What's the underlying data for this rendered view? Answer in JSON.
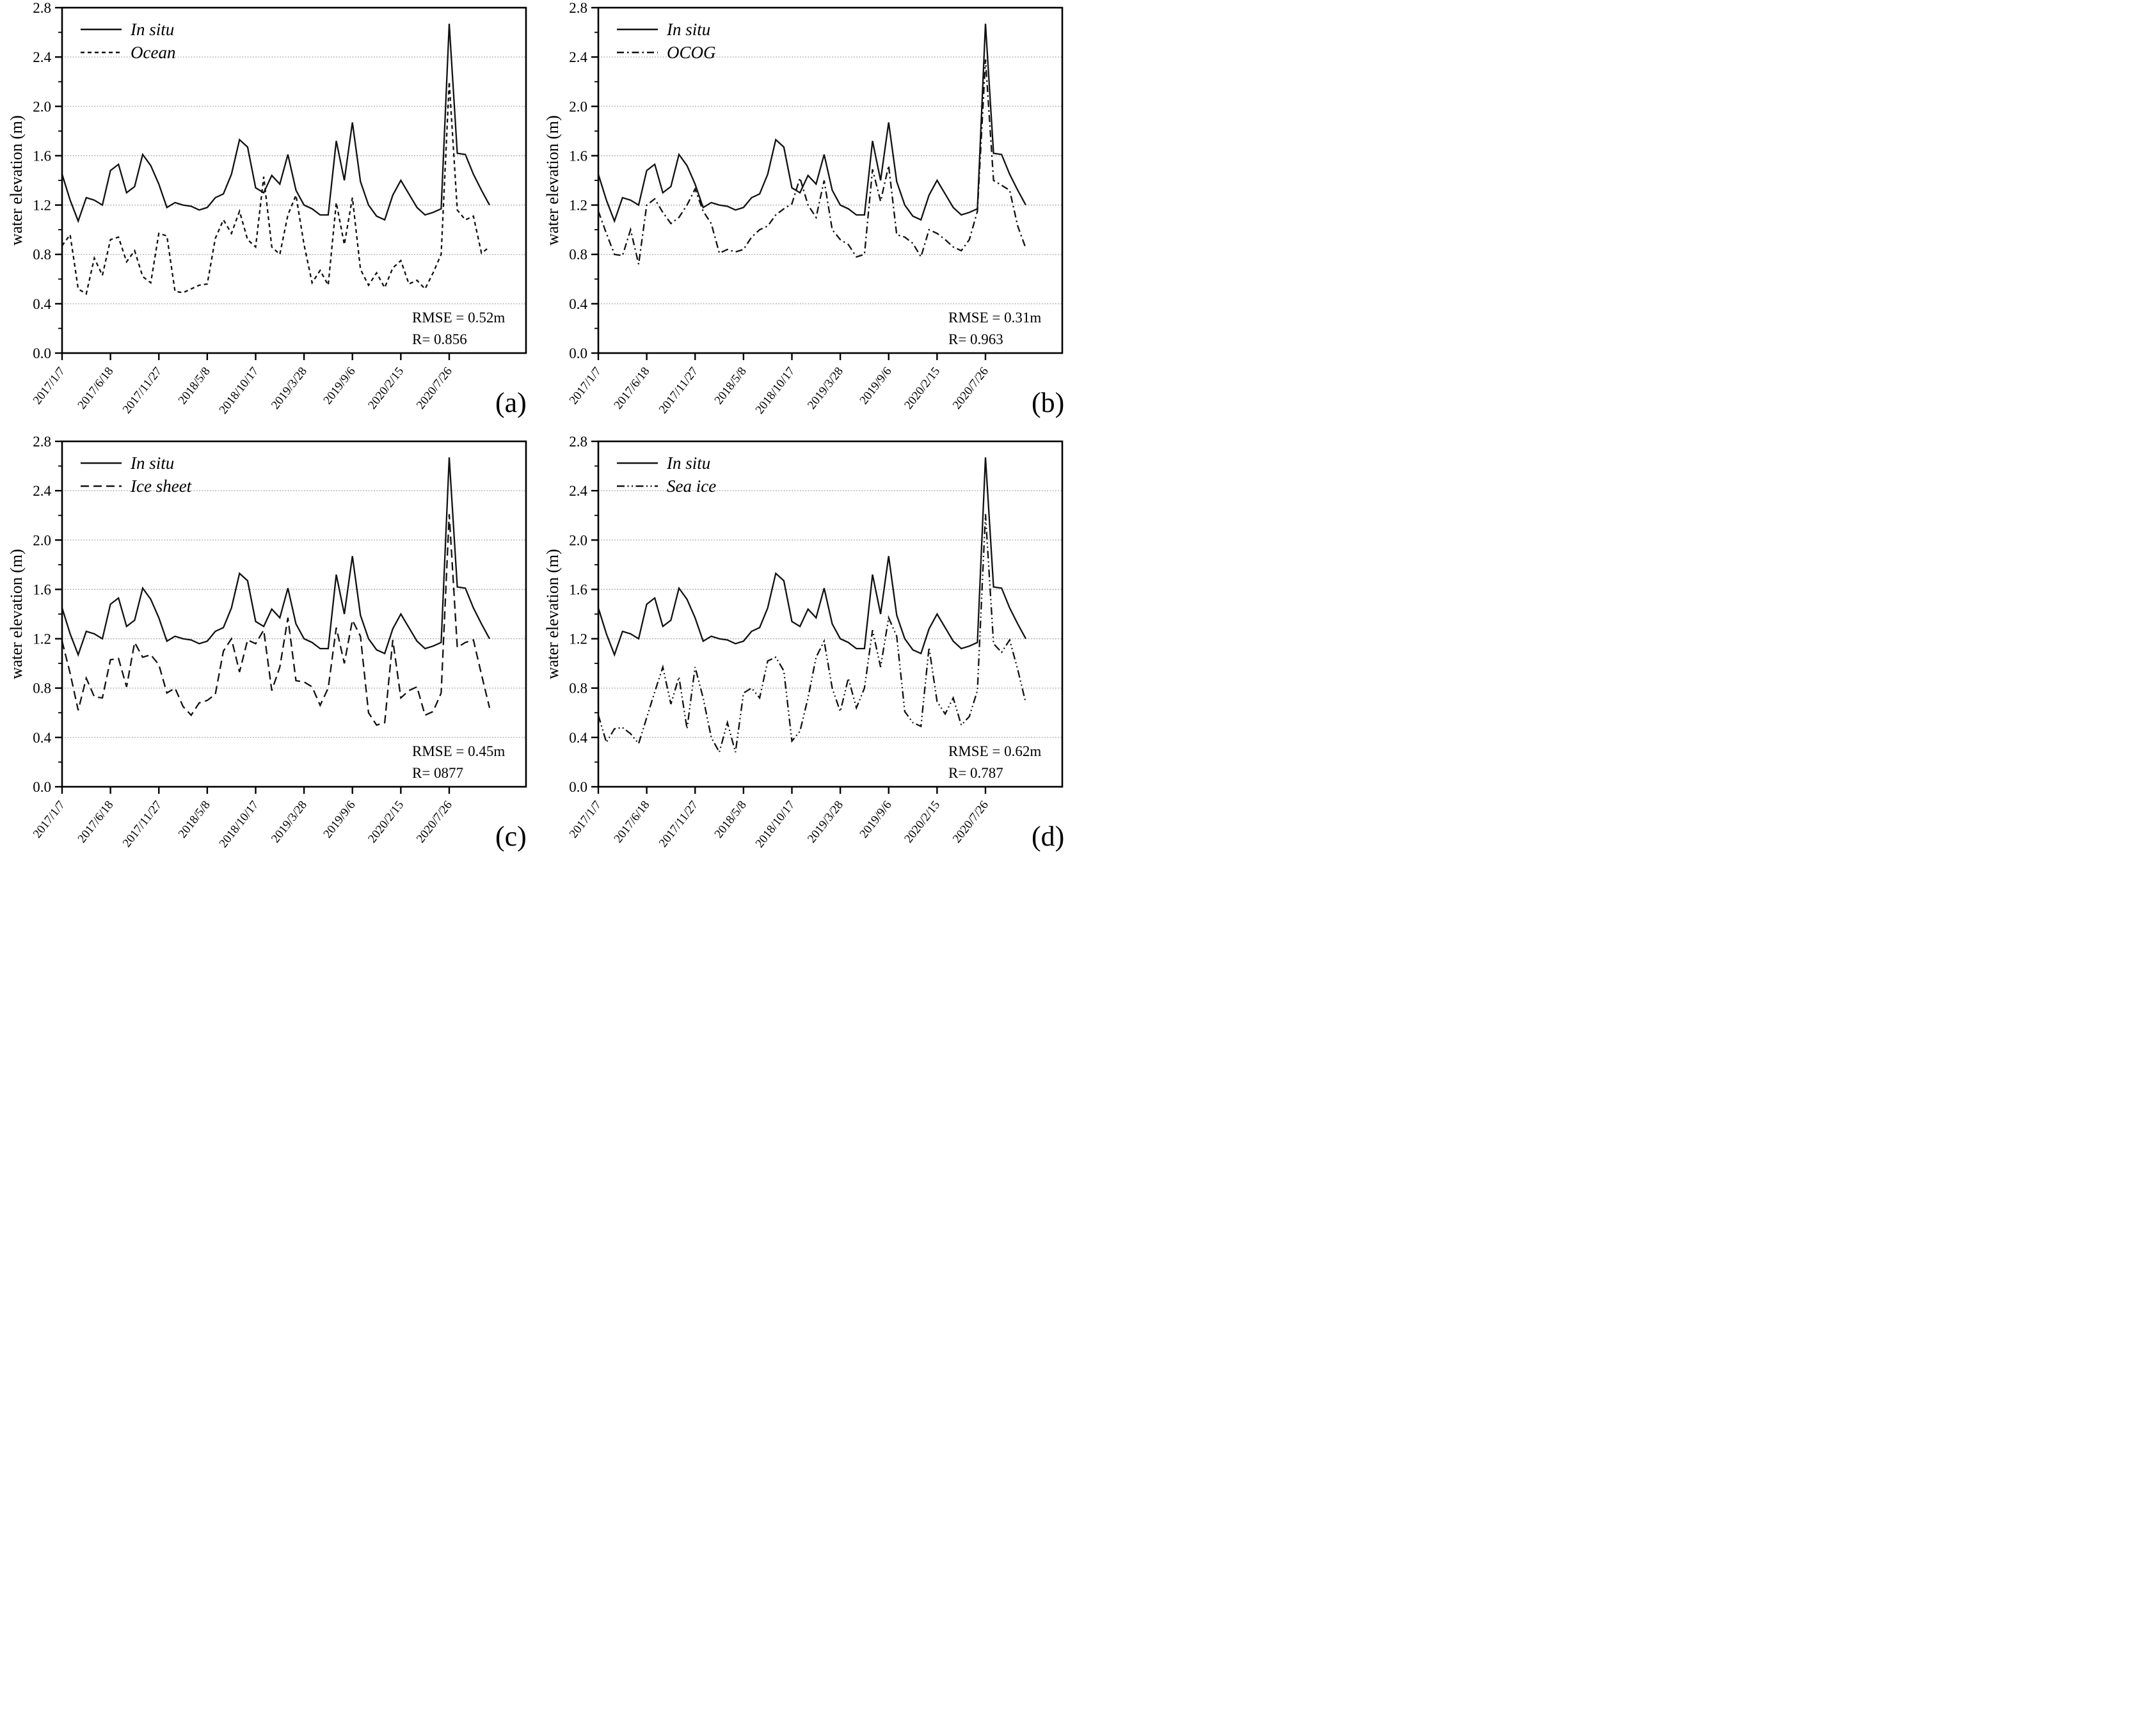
{
  "figure": {
    "ylabel": "water elevation (m)",
    "ylim": [
      0.0,
      2.8
    ],
    "y_tick_step": 0.4,
    "y_tick_labels": [
      "0.0",
      "0.4",
      "0.8",
      "1.2",
      "1.6",
      "2.0",
      "2.4",
      "2.8"
    ],
    "x_tick_labels": [
      "2017/1/7",
      "2017/6/18",
      "2017/11/27",
      "2018/5/8",
      "2018/10/17",
      "2019/3/28",
      "2019/9/6",
      "2020/2/15",
      "2020/7/26"
    ],
    "points_per_tick_interval": 6,
    "grid": "horizontal dotted gridlines",
    "legend_position": "top-left"
  },
  "chart_data": [
    {
      "panel": "a",
      "type": "line",
      "panel_label": "(a)",
      "rmse_label": "RMSE = 0.52m",
      "r_label": "R= 0.856",
      "series": [
        {
          "name": "In situ",
          "style": "solid",
          "values": [
            1.45,
            1.24,
            1.07,
            1.26,
            1.24,
            1.2,
            1.48,
            1.53,
            1.3,
            1.35,
            1.61,
            1.52,
            1.37,
            1.18,
            1.22,
            1.2,
            1.19,
            1.16,
            1.18,
            1.26,
            1.29,
            1.45,
            1.73,
            1.67,
            1.34,
            1.3,
            1.44,
            1.37,
            1.61,
            1.32,
            1.2,
            1.17,
            1.12,
            1.12,
            1.72,
            1.4,
            1.87,
            1.39,
            1.2,
            1.11,
            1.08,
            1.28,
            1.4,
            1.29,
            1.18,
            1.12,
            1.14,
            1.17,
            2.67,
            1.62,
            1.61,
            1.45,
            1.32,
            1.2
          ]
        },
        {
          "name": "Ocean",
          "style": "dashed",
          "values": [
            0.87,
            0.96,
            0.52,
            0.48,
            0.77,
            0.63,
            0.92,
            0.94,
            0.74,
            0.83,
            0.62,
            0.57,
            0.97,
            0.95,
            0.5,
            0.49,
            0.52,
            0.55,
            0.56,
            0.93,
            1.08,
            0.97,
            1.15,
            0.92,
            0.86,
            1.43,
            0.86,
            0.8,
            1.12,
            1.28,
            0.88,
            0.57,
            0.67,
            0.55,
            1.22,
            0.88,
            1.26,
            0.68,
            0.55,
            0.65,
            0.53,
            0.69,
            0.75,
            0.56,
            0.59,
            0.52,
            0.65,
            0.8,
            2.2,
            1.16,
            1.08,
            1.11,
            0.81,
            0.86
          ]
        }
      ]
    },
    {
      "panel": "b",
      "type": "line",
      "panel_label": "(b)",
      "rmse_label": "RMSE = 0.31m",
      "r_label": "R= 0.963",
      "series": [
        {
          "name": "In situ",
          "style": "solid",
          "values": [
            1.45,
            1.24,
            1.07,
            1.26,
            1.24,
            1.2,
            1.48,
            1.53,
            1.3,
            1.35,
            1.61,
            1.52,
            1.37,
            1.18,
            1.22,
            1.2,
            1.19,
            1.16,
            1.18,
            1.26,
            1.29,
            1.45,
            1.73,
            1.67,
            1.34,
            1.3,
            1.44,
            1.37,
            1.61,
            1.32,
            1.2,
            1.17,
            1.12,
            1.12,
            1.72,
            1.4,
            1.87,
            1.39,
            1.2,
            1.11,
            1.08,
            1.28,
            1.4,
            1.29,
            1.18,
            1.12,
            1.14,
            1.17,
            2.67,
            1.62,
            1.61,
            1.45,
            1.32,
            1.2
          ]
        },
        {
          "name": "OCOG",
          "style": "dashdot",
          "values": [
            1.15,
            0.97,
            0.8,
            0.79,
            1.0,
            0.72,
            1.2,
            1.25,
            1.14,
            1.05,
            1.1,
            1.2,
            1.33,
            1.15,
            1.05,
            0.81,
            0.84,
            0.82,
            0.84,
            0.94,
            1.0,
            1.03,
            1.12,
            1.17,
            1.21,
            1.42,
            1.2,
            1.1,
            1.4,
            1.0,
            0.92,
            0.88,
            0.78,
            0.8,
            1.49,
            1.23,
            1.52,
            0.96,
            0.94,
            0.89,
            0.78,
            1.0,
            0.97,
            0.92,
            0.86,
            0.83,
            0.92,
            1.15,
            2.38,
            1.4,
            1.36,
            1.32,
            1.03,
            0.85
          ]
        }
      ]
    },
    {
      "panel": "c",
      "type": "line",
      "panel_label": "(c)",
      "rmse_label": "RMSE = 0.45m",
      "r_label": "R= 0877",
      "series": [
        {
          "name": "In situ",
          "style": "solid",
          "values": [
            1.45,
            1.24,
            1.07,
            1.26,
            1.24,
            1.2,
            1.48,
            1.53,
            1.3,
            1.35,
            1.61,
            1.52,
            1.37,
            1.18,
            1.22,
            1.2,
            1.19,
            1.16,
            1.18,
            1.26,
            1.29,
            1.45,
            1.73,
            1.67,
            1.34,
            1.3,
            1.44,
            1.37,
            1.61,
            1.32,
            1.2,
            1.17,
            1.12,
            1.12,
            1.72,
            1.4,
            1.87,
            1.39,
            1.2,
            1.11,
            1.08,
            1.28,
            1.4,
            1.29,
            1.18,
            1.12,
            1.14,
            1.17,
            2.67,
            1.62,
            1.61,
            1.45,
            1.32,
            1.2
          ]
        },
        {
          "name": "Ice sheet",
          "style": "longdash",
          "values": [
            1.18,
            0.92,
            0.62,
            0.88,
            0.73,
            0.72,
            1.03,
            1.04,
            0.81,
            1.17,
            1.05,
            1.07,
            0.99,
            0.76,
            0.8,
            0.65,
            0.58,
            0.68,
            0.7,
            0.75,
            1.1,
            1.2,
            0.93,
            1.19,
            1.16,
            1.27,
            0.78,
            0.97,
            1.37,
            0.86,
            0.85,
            0.81,
            0.66,
            0.8,
            1.29,
            1.0,
            1.35,
            1.22,
            0.6,
            0.5,
            0.52,
            1.19,
            0.72,
            0.78,
            0.81,
            0.58,
            0.61,
            0.76,
            2.21,
            1.13,
            1.17,
            1.19,
            0.91,
            0.64
          ]
        }
      ]
    },
    {
      "panel": "d",
      "type": "line",
      "panel_label": "(d)",
      "rmse_label": "RMSE = 0.62m",
      "r_label": "R= 0.787",
      "series": [
        {
          "name": "In situ",
          "style": "solid",
          "values": [
            1.45,
            1.24,
            1.07,
            1.26,
            1.24,
            1.2,
            1.48,
            1.53,
            1.3,
            1.35,
            1.61,
            1.52,
            1.37,
            1.18,
            1.22,
            1.2,
            1.19,
            1.16,
            1.18,
            1.26,
            1.29,
            1.45,
            1.73,
            1.67,
            1.34,
            1.3,
            1.44,
            1.37,
            1.61,
            1.32,
            1.2,
            1.17,
            1.12,
            1.12,
            1.72,
            1.4,
            1.87,
            1.39,
            1.2,
            1.11,
            1.08,
            1.28,
            1.4,
            1.29,
            1.18,
            1.12,
            1.14,
            1.17,
            2.67,
            1.62,
            1.61,
            1.45,
            1.32,
            1.2
          ]
        },
        {
          "name": "Sea ice",
          "style": "dashdotdot",
          "values": [
            0.58,
            0.36,
            0.47,
            0.48,
            0.43,
            0.35,
            0.56,
            0.77,
            0.97,
            0.67,
            0.89,
            0.47,
            0.97,
            0.72,
            0.4,
            0.28,
            0.52,
            0.28,
            0.76,
            0.8,
            0.72,
            1.02,
            1.05,
            0.94,
            0.37,
            0.45,
            0.72,
            1.05,
            1.18,
            0.8,
            0.61,
            0.88,
            0.64,
            0.8,
            1.27,
            0.97,
            1.37,
            1.22,
            0.61,
            0.52,
            0.49,
            1.13,
            0.69,
            0.59,
            0.72,
            0.5,
            0.57,
            0.78,
            2.21,
            1.16,
            1.09,
            1.19,
            0.95,
            0.68
          ]
        }
      ]
    }
  ]
}
